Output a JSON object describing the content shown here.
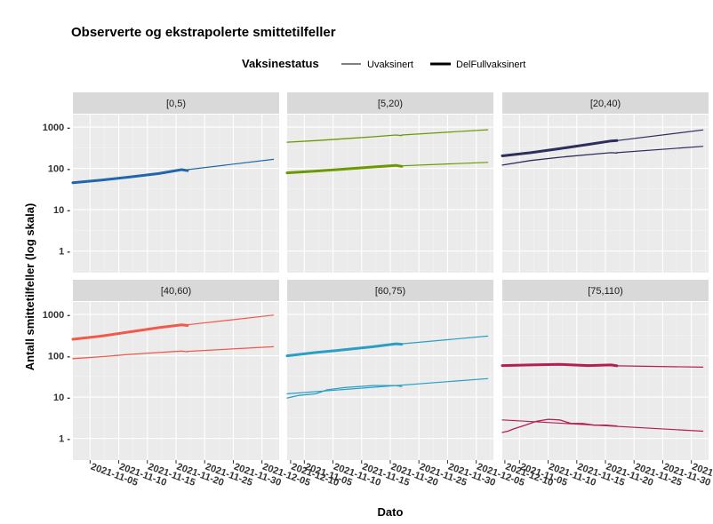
{
  "chart_data": {
    "type": "line",
    "title": "Observerte og ekstrapolerte smittetilfeller",
    "xlabel": "Dato",
    "ylabel": "Antall smittetilfeller (log skala)",
    "y_scale": "log10",
    "ylim": [
      0.3,
      2000
    ],
    "y_ticks": [
      1,
      10,
      100,
      1000
    ],
    "y_tick_labels": [
      "1 -",
      "10 -",
      "100 -",
      "1000 -"
    ],
    "xlim": [
      "2021-11-02",
      "2021-12-08"
    ],
    "x_ticks": [
      "2021-11-05",
      "2021-11-10",
      "2021-11-15",
      "2021-11-20",
      "2021-11-25",
      "2021-11-30",
      "2021-12-05",
      "2021-12-10"
    ],
    "x_tick_labels": [
      "2021-11-05",
      "2021-11-10",
      "2021-11-15",
      "2021-11-20",
      "2021-11-25",
      "2021-11-30",
      "2021-12-05",
      "2021-12-10"
    ],
    "grid": true,
    "panel_background": "#ebebeb",
    "strip_background": "#d9d9d9",
    "legend": {
      "title": "Vaksinestatus",
      "position": "top",
      "entries": [
        {
          "label": "Uvaksinert",
          "style": "thin"
        },
        {
          "label": "DelFullvaksinert",
          "style": "thick"
        }
      ]
    },
    "facets": [
      {
        "label": "[0,5)",
        "color": "#2166ac",
        "series": [
          {
            "status": "DelFullvaksinert",
            "kind": "observed",
            "x": [
              "2021-11-02",
              "2021-11-07",
              "2021-11-12",
              "2021-11-17",
              "2021-11-21",
              "2021-11-22"
            ],
            "values": [
              45,
              52,
              62,
              75,
              93,
              88
            ]
          },
          {
            "status": "DelFullvaksinert",
            "kind": "extrapolated",
            "x": [
              "2021-11-22",
              "2021-12-07"
            ],
            "values": [
              93,
              165
            ]
          }
        ]
      },
      {
        "label": "[5,20)",
        "color": "#6a9a00",
        "series": [
          {
            "status": "Uvaksinert",
            "kind": "observed",
            "x": [
              "2021-11-02",
              "2021-11-07",
              "2021-11-12",
              "2021-11-17",
              "2021-11-21",
              "2021-11-22"
            ],
            "values": [
              430,
              470,
              520,
              580,
              640,
              620
            ]
          },
          {
            "status": "Uvaksinert",
            "kind": "extrapolated",
            "x": [
              "2021-11-22",
              "2021-12-07"
            ],
            "values": [
              640,
              860
            ]
          },
          {
            "status": "DelFullvaksinert",
            "kind": "observed",
            "x": [
              "2021-11-02",
              "2021-11-07",
              "2021-11-12",
              "2021-11-17",
              "2021-11-21",
              "2021-11-22"
            ],
            "values": [
              78,
              86,
              96,
              108,
              118,
              112
            ]
          },
          {
            "status": "DelFullvaksinert",
            "kind": "extrapolated",
            "x": [
              "2021-11-22",
              "2021-12-07"
            ],
            "values": [
              115,
              140
            ]
          }
        ]
      },
      {
        "label": "[20,40)",
        "color": "#2d2d5e",
        "series": [
          {
            "status": "DelFullvaksinert",
            "kind": "observed",
            "x": [
              "2021-11-02",
              "2021-11-07",
              "2021-11-12",
              "2021-11-17",
              "2021-11-21",
              "2021-11-22"
            ],
            "values": [
              200,
              240,
              300,
              380,
              460,
              470
            ]
          },
          {
            "status": "DelFullvaksinert",
            "kind": "extrapolated",
            "x": [
              "2021-11-22",
              "2021-12-07"
            ],
            "values": [
              470,
              850
            ]
          },
          {
            "status": "Uvaksinert",
            "kind": "observed",
            "x": [
              "2021-11-02",
              "2021-11-07",
              "2021-11-12",
              "2021-11-17",
              "2021-11-21",
              "2021-11-22"
            ],
            "values": [
              120,
              155,
              185,
              215,
              240,
              235
            ]
          },
          {
            "status": "Uvaksinert",
            "kind": "extrapolated",
            "x": [
              "2021-11-22",
              "2021-12-07"
            ],
            "values": [
              240,
              340
            ]
          }
        ]
      },
      {
        "label": "[40,60)",
        "color": "#f05a4a",
        "series": [
          {
            "status": "DelFullvaksinert",
            "kind": "observed",
            "x": [
              "2021-11-02",
              "2021-11-07",
              "2021-11-12",
              "2021-11-17",
              "2021-11-21",
              "2021-11-22"
            ],
            "values": [
              250,
              300,
              380,
              480,
              560,
              540
            ]
          },
          {
            "status": "DelFullvaksinert",
            "kind": "extrapolated",
            "x": [
              "2021-11-22",
              "2021-12-07"
            ],
            "values": [
              560,
              960
            ]
          },
          {
            "status": "Uvaksinert",
            "kind": "observed",
            "x": [
              "2021-11-02",
              "2021-11-07",
              "2021-11-12",
              "2021-11-17",
              "2021-11-21",
              "2021-11-22"
            ],
            "values": [
              85,
              95,
              108,
              120,
              130,
              125
            ]
          },
          {
            "status": "Uvaksinert",
            "kind": "extrapolated",
            "x": [
              "2021-11-22",
              "2021-12-07"
            ],
            "values": [
              128,
              165
            ]
          }
        ]
      },
      {
        "label": "[60,75)",
        "color": "#2a9ec4",
        "series": [
          {
            "status": "DelFullvaksinert",
            "kind": "observed",
            "x": [
              "2021-11-02",
              "2021-11-07",
              "2021-11-12",
              "2021-11-17",
              "2021-11-21",
              "2021-11-22"
            ],
            "values": [
              100,
              120,
              140,
              165,
              195,
              190
            ]
          },
          {
            "status": "DelFullvaksinert",
            "kind": "extrapolated",
            "x": [
              "2021-11-22",
              "2021-12-07"
            ],
            "values": [
              195,
              300
            ]
          },
          {
            "status": "Uvaksinert",
            "kind": "observed",
            "x": [
              "2021-11-02",
              "2021-11-04",
              "2021-11-07",
              "2021-11-09",
              "2021-11-12",
              "2021-11-17",
              "2021-11-21",
              "2021-11-22"
            ],
            "values": [
              9.5,
              11,
              12,
              15,
              17,
              19,
              19,
              18
            ]
          },
          {
            "status": "Uvaksinert",
            "kind": "extrapolated",
            "x": [
              "2021-11-02",
              "2021-12-07"
            ],
            "values": [
              12,
              28
            ]
          }
        ]
      },
      {
        "label": "[75,110)",
        "color": "#b51f4f",
        "series": [
          {
            "status": "DelFullvaksinert",
            "kind": "observed",
            "x": [
              "2021-11-02",
              "2021-11-07",
              "2021-11-12",
              "2021-11-17",
              "2021-11-21",
              "2021-11-22"
            ],
            "values": [
              58,
              60,
              62,
              58,
              60,
              57
            ]
          },
          {
            "status": "DelFullvaksinert",
            "kind": "extrapolated",
            "x": [
              "2021-11-22",
              "2021-12-07"
            ],
            "values": [
              57,
              53
            ]
          },
          {
            "status": "Uvaksinert",
            "kind": "observed",
            "x": [
              "2021-11-02",
              "2021-11-03",
              "2021-11-04",
              "2021-11-06",
              "2021-11-08",
              "2021-11-10",
              "2021-11-12",
              "2021-11-14",
              "2021-11-16",
              "2021-11-18",
              "2021-11-20",
              "2021-11-22"
            ],
            "values": [
              1.4,
              1.5,
              1.7,
              2.1,
              2.6,
              2.9,
              2.8,
              2.3,
              2.3,
              2.1,
              2.1,
              2.0
            ]
          },
          {
            "status": "Uvaksinert",
            "kind": "extrapolated",
            "x": [
              "2021-11-02",
              "2021-12-07"
            ],
            "values": [
              2.8,
              1.5
            ]
          }
        ]
      }
    ]
  }
}
